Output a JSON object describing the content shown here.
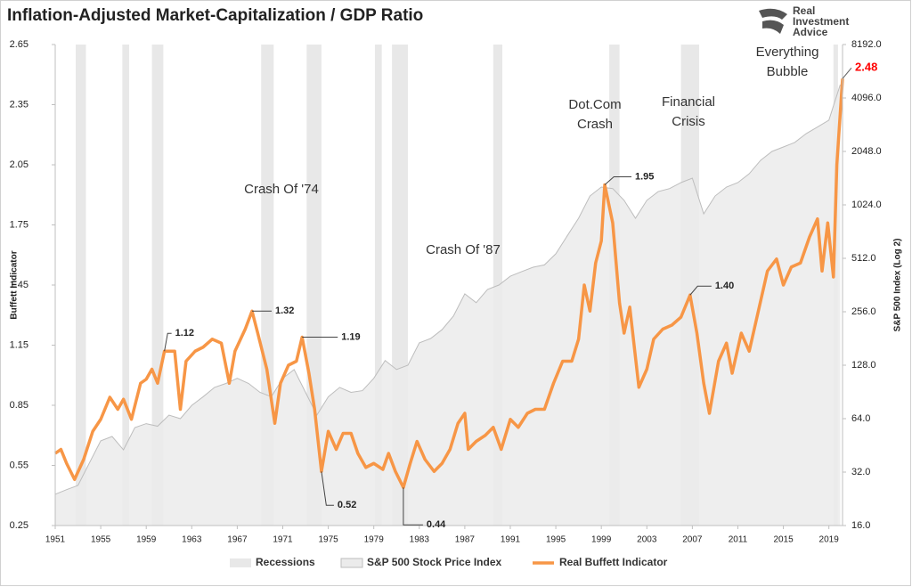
{
  "brand": [
    "Real",
    "Investment",
    "Advice"
  ],
  "chart_data": {
    "type": "line",
    "title": "Inflation-Adjusted Market-Capitalization / GDP Ratio",
    "ylabel": "Buffett Indicator",
    "y2label": "S&P 500 Index (Log 2)",
    "xlim": [
      1951,
      2020.2
    ],
    "xticks": [
      1951,
      1955,
      1959,
      1963,
      1967,
      1971,
      1975,
      1979,
      1983,
      1987,
      1991,
      1995,
      1999,
      2003,
      2007,
      2011,
      2015,
      2019
    ],
    "ylim": [
      0.25,
      2.65
    ],
    "yticks": [
      0.25,
      0.55,
      0.85,
      1.15,
      1.45,
      1.75,
      2.05,
      2.35,
      2.65
    ],
    "y2lim": [
      16,
      8192
    ],
    "y2log": 2,
    "y2ticks": [
      {
        "value": 16,
        "label": "16.0"
      },
      {
        "value": 32,
        "label": "32.0"
      },
      {
        "value": 64,
        "label": "64.0"
      },
      {
        "value": 128,
        "label": "128.0"
      },
      {
        "value": 256,
        "label": "256.0"
      },
      {
        "value": 512,
        "label": "512.0"
      },
      {
        "value": 1024,
        "label": "1024.0"
      },
      {
        "value": 2048,
        "label": "2048.0"
      },
      {
        "value": 4096,
        "label": "4096.0"
      },
      {
        "value": 8192,
        "label": "8192.0"
      }
    ],
    "grid": false,
    "recessions": {
      "name": "Recessions",
      "color": "#e8e8e8",
      "ranges": [
        [
          1952.8,
          1953.7
        ],
        [
          1956.9,
          1957.5
        ],
        [
          1959.5,
          1960.5
        ],
        [
          1969.1,
          1970.2
        ],
        [
          1973.1,
          1974.4
        ],
        [
          1979.1,
          1979.7
        ],
        [
          1980.6,
          1982.0
        ],
        [
          1989.5,
          1990.3
        ],
        [
          1999.7,
          2000.6
        ],
        [
          2006.0,
          2007.6
        ],
        [
          2019.4,
          2019.8
        ]
      ]
    },
    "series": [
      {
        "name": "S&P 500 Stock Price Index",
        "type": "area",
        "axis": "y2",
        "color": "#ebebeb",
        "edge": "#bdbdbd",
        "x": [
          1951,
          1952,
          1953,
          1954,
          1955,
          1956,
          1957,
          1958,
          1959,
          1960,
          1961,
          1962,
          1963,
          1964,
          1965,
          1966,
          1967,
          1968,
          1969,
          1970,
          1971,
          1972,
          1973,
          1974,
          1975,
          1976,
          1977,
          1978,
          1979,
          1980,
          1981,
          1982,
          1983,
          1984,
          1985,
          1986,
          1987,
          1988,
          1989,
          1990,
          1991,
          1992,
          1993,
          1994,
          1995,
          1996,
          1997,
          1998,
          1999,
          2000,
          2001,
          2002,
          2003,
          2004,
          2005,
          2006,
          2007,
          2008,
          2009,
          2010,
          2011,
          2012,
          2013,
          2014,
          2015,
          2016,
          2017,
          2018,
          2019,
          2020
        ],
        "values": [
          24,
          25.5,
          26.9,
          36,
          48,
          50.8,
          42.7,
          57,
          60,
          58,
          67,
          64,
          76,
          85,
          96,
          101,
          108,
          101,
          90,
          85,
          108,
          121,
          90,
          67,
          85,
          96,
          90,
          92,
          108,
          136,
          121,
          128,
          171,
          181,
          203,
          242,
          323,
          288,
          342,
          362,
          406,
          431,
          456,
          470,
          543,
          685,
          861,
          1149,
          1290,
          1265,
          1086,
          861,
          1086,
          1217,
          1265,
          1367,
          1448,
          912,
          1149,
          1290,
          1367,
          1534,
          1825,
          2048,
          2170,
          2300,
          2580,
          2813,
          3072,
          4870
        ]
      },
      {
        "name": "Real Buffett Indicator",
        "color": "#f79646",
        "x": [
          1951,
          1951.5,
          1952,
          1952.7,
          1953.5,
          1954.3,
          1955,
          1955.8,
          1956.5,
          1957,
          1957.7,
          1958.5,
          1959,
          1959.5,
          1960,
          1960.6,
          1961.5,
          1962,
          1962.5,
          1963.3,
          1964,
          1964.8,
          1965.6,
          1966.3,
          1966.8,
          1967.7,
          1968.3,
          1968.8,
          1969.6,
          1970.3,
          1970.8,
          1971.5,
          1972.2,
          1972.7,
          1973.3,
          1973.8,
          1974.4,
          1975,
          1975.7,
          1976.3,
          1977,
          1977.6,
          1978.3,
          1979,
          1979.8,
          1980.3,
          1980.9,
          1981.6,
          1982.2,
          1982.8,
          1983.5,
          1984.3,
          1985,
          1985.7,
          1986.4,
          1987,
          1987.3,
          1988,
          1988.8,
          1989.5,
          1990.2,
          1991,
          1991.7,
          1992.5,
          1993.2,
          1994,
          1994.8,
          1995.6,
          1996.4,
          1997,
          1997.5,
          1998,
          1998.5,
          1999,
          1999.3,
          2000,
          2000.6,
          2001,
          2001.5,
          2002.3,
          2003,
          2003.6,
          2004.4,
          2005.2,
          2006,
          2006.8,
          2007.4,
          2008,
          2008.5,
          2009.3,
          2010,
          2010.5,
          2011.3,
          2012,
          2012.8,
          2013.6,
          2014.4,
          2015,
          2015.7,
          2016.5,
          2017.3,
          2018,
          2018.4,
          2018.9,
          2019.4,
          2019.7,
          2020.2
        ],
        "values": [
          0.61,
          0.63,
          0.56,
          0.48,
          0.58,
          0.72,
          0.78,
          0.89,
          0.83,
          0.88,
          0.78,
          0.96,
          0.98,
          1.03,
          0.96,
          1.12,
          1.12,
          0.83,
          1.07,
          1.12,
          1.14,
          1.18,
          1.16,
          0.96,
          1.12,
          1.23,
          1.32,
          1.21,
          1.03,
          0.76,
          0.96,
          1.05,
          1.07,
          1.19,
          1.01,
          0.83,
          0.52,
          0.72,
          0.63,
          0.71,
          0.71,
          0.61,
          0.54,
          0.56,
          0.53,
          0.61,
          0.52,
          0.44,
          0.56,
          0.67,
          0.58,
          0.52,
          0.56,
          0.63,
          0.76,
          0.81,
          0.63,
          0.67,
          0.7,
          0.74,
          0.63,
          0.78,
          0.74,
          0.81,
          0.83,
          0.83,
          0.96,
          1.07,
          1.07,
          1.18,
          1.45,
          1.32,
          1.56,
          1.67,
          1.95,
          1.76,
          1.36,
          1.21,
          1.34,
          0.94,
          1.03,
          1.18,
          1.23,
          1.25,
          1.29,
          1.4,
          1.21,
          0.96,
          0.81,
          1.07,
          1.16,
          1.01,
          1.21,
          1.12,
          1.32,
          1.52,
          1.58,
          1.45,
          1.54,
          1.56,
          1.69,
          1.78,
          1.52,
          1.76,
          1.49,
          2.05,
          2.48
        ]
      }
    ],
    "callouts": [
      {
        "x": 1960.6,
        "value": 1.12
      },
      {
        "x": 1968.3,
        "value": 1.32
      },
      {
        "x": 1972.7,
        "value": 1.19
      },
      {
        "x": 1974.4,
        "value": 0.52
      },
      {
        "x": 1981.6,
        "value": 0.44
      },
      {
        "x": 1999.3,
        "value": 1.95
      },
      {
        "x": 2006.8,
        "value": 1.4,
        "label": "1.40"
      },
      {
        "x": 2020.2,
        "value": 2.48,
        "color": "#ff0000"
      }
    ],
    "events": [
      {
        "lines": [
          "Crash Of '74"
        ]
      },
      {
        "lines": [
          "Crash Of '87"
        ]
      },
      {
        "lines": [
          "Dot.Com",
          "Crash"
        ]
      },
      {
        "lines": [
          "Financial",
          "Crisis"
        ]
      },
      {
        "lines": [
          "Everything",
          "Bubble"
        ]
      }
    ]
  }
}
